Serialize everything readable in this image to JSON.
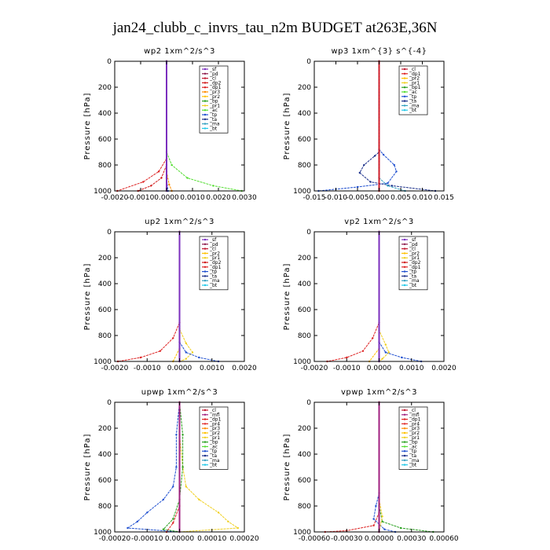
{
  "figure_title": "jan24_clubb_c_invrs_tau_n2m  BUDGET at263E,36N",
  "series_colors": {
    "_sf": "#7b2fbe",
    "_pd": "#8b1a4a",
    "_cl": "#c0182f",
    "_dp2": "#d01818",
    "_dp1": "#dd2222",
    "_pr3": "#ff8c00",
    "_pr2": "#ffc000",
    "_pr1": "#f0d020",
    "_bp": "#2aa020",
    "_bp1": "#2aa020",
    "_ac": "#55dd33",
    "_tp": "#2050d0",
    "_ta": "#1a2f8a",
    "_ma": "#33a0c0",
    "_bt": "#22c8e8",
    "_mfl": "#a02080",
    "_dp4": "#c0182f",
    "_pr4": "#e02a2a"
  },
  "chart_data": [
    {
      "type": "line",
      "title": "wp2   1xm^2/s^3",
      "ylabel": "Pressure  [hPa]",
      "ylim": [
        1000,
        0
      ],
      "xlim": [
        -0.002,
        0.003
      ],
      "xticks": [
        "-0.0020",
        "-0.0010",
        "0.0000",
        "0.0010",
        "0.0020",
        "0.0030"
      ],
      "xtick_values": [
        -0.002,
        -0.001,
        0.0,
        0.001,
        0.002,
        0.003
      ],
      "yticks": [
        "0",
        "200",
        "400",
        "600",
        "800",
        "1000"
      ],
      "ytick_values": [
        0,
        200,
        400,
        600,
        800,
        1000
      ],
      "legend": [
        "_sf",
        "_pd",
        "_cl",
        "_dp2",
        "_dp1",
        "_pr3",
        "_pr2",
        "_bp",
        "_pr1",
        "_ac",
        "_tp",
        "_ta",
        "_ma",
        "_bt"
      ],
      "series": [
        {
          "name": "_ac",
          "values": [
            [
              0.0,
              0
            ],
            [
              0.0,
              700
            ],
            [
              0.0002,
              800
            ],
            [
              0.0008,
              900
            ],
            [
              0.0018,
              960
            ],
            [
              0.0029,
              1000
            ]
          ]
        },
        {
          "name": "_dp1",
          "values": [
            [
              0.0,
              0
            ],
            [
              0.0,
              750
            ],
            [
              -0.0003,
              850
            ],
            [
              -0.0009,
              930
            ],
            [
              -0.0019,
              1000
            ]
          ]
        },
        {
          "name": "_dp2",
          "values": [
            [
              0.0,
              0
            ],
            [
              0.0,
              800
            ],
            [
              -0.0002,
              900
            ],
            [
              -0.0006,
              960
            ],
            [
              -0.0011,
              1000
            ]
          ]
        },
        {
          "name": "_pr3",
          "values": [
            [
              0.0,
              0
            ],
            [
              0.0,
              850
            ],
            [
              0.0001,
              950
            ],
            [
              0.0002,
              1000
            ]
          ]
        },
        {
          "name": "_tp",
          "values": [
            [
              0.0,
              0
            ],
            [
              0.0,
              900
            ],
            [
              5e-05,
              1000
            ]
          ]
        },
        {
          "name": "_cl",
          "values": [
            [
              0.0,
              0
            ],
            [
              0.0,
              1000
            ]
          ]
        },
        {
          "name": "_sf",
          "values": [
            [
              0.0,
              0
            ],
            [
              0.0,
              1000
            ]
          ]
        }
      ]
    },
    {
      "type": "line",
      "title": "wp3   1xm^{3} s^{-4}",
      "ylabel": "Pressure  [hPa]",
      "ylim": [
        1000,
        0
      ],
      "xlim": [
        -0.015,
        0.015
      ],
      "xticks": [
        "-0.015",
        "-0.010",
        "-0.005",
        "0.000",
        "0.005",
        "0.010",
        "0.015"
      ],
      "xtick_values": [
        -0.015,
        -0.01,
        -0.005,
        0.0,
        0.005,
        0.01,
        0.015
      ],
      "yticks": [
        "0",
        "200",
        "400",
        "600",
        "800",
        "1000"
      ],
      "ytick_values": [
        0,
        200,
        400,
        600,
        800,
        1000
      ],
      "legend": [
        "_cl",
        "_dp1",
        "_pr2",
        "_pr1",
        "_bp1",
        "_ac",
        "_tp",
        "_ta",
        "_ma",
        "_bt"
      ],
      "series": [
        {
          "name": "_tp",
          "values": [
            [
              0.0,
              0
            ],
            [
              0.0,
              680
            ],
            [
              0.001,
              720
            ],
            [
              0.0035,
              800
            ],
            [
              0.004,
              850
            ],
            [
              0.002,
              940
            ],
            [
              -0.005,
              970
            ],
            [
              -0.014,
              1000
            ]
          ]
        },
        {
          "name": "_ta",
          "values": [
            [
              0.0,
              0
            ],
            [
              0.0,
              700
            ],
            [
              -0.001,
              730
            ],
            [
              -0.0035,
              800
            ],
            [
              -0.0045,
              860
            ],
            [
              -0.002,
              930
            ],
            [
              0.003,
              960
            ],
            [
              0.013,
              1000
            ]
          ]
        },
        {
          "name": "_ma",
          "values": [
            [
              0.0,
              0
            ],
            [
              0.0,
              900
            ],
            [
              0.002,
              960
            ],
            [
              0.006,
              1000
            ]
          ]
        },
        {
          "name": "_cl",
          "values": [
            [
              0.0,
              0
            ],
            [
              0.0,
              1000
            ]
          ]
        },
        {
          "name": "_dp1",
          "values": [
            [
              0.0,
              0
            ],
            [
              0.0,
              1000
            ]
          ]
        }
      ]
    },
    {
      "type": "line",
      "title": "up2   1xm^2/s^3",
      "ylabel": "Pressure  [hPa]",
      "ylim": [
        1000,
        0
      ],
      "xlim": [
        -0.002,
        0.002
      ],
      "xticks": [
        "-0.0020",
        "-0.0010",
        "0.0000",
        "0.0010",
        "0.0020"
      ],
      "xtick_values": [
        -0.002,
        -0.001,
        0.0,
        0.001,
        0.002
      ],
      "yticks": [
        "0",
        "200",
        "400",
        "600",
        "800",
        "1000"
      ],
      "ytick_values": [
        0,
        200,
        400,
        600,
        800,
        1000
      ],
      "legend": [
        "_sf",
        "_pd",
        "_cl",
        "_pr2",
        "_pr1",
        "_dp2",
        "_dp1",
        "_tp",
        "_ta",
        "_ma",
        "_bt"
      ],
      "series": [
        {
          "name": "_dp1",
          "values": [
            [
              0.0,
              0
            ],
            [
              0.0,
              700
            ],
            [
              -0.0002,
              820
            ],
            [
              -0.0006,
              920
            ],
            [
              -0.0012,
              970
            ],
            [
              -0.0019,
              1000
            ]
          ]
        },
        {
          "name": "_pr1",
          "values": [
            [
              0.0,
              0
            ],
            [
              0.0,
              750
            ],
            [
              0.0002,
              860
            ],
            [
              0.0004,
              930
            ],
            [
              0.0002,
              980
            ],
            [
              0.0,
              1000
            ]
          ]
        },
        {
          "name": "_tp",
          "values": [
            [
              0.0,
              0
            ],
            [
              0.0,
              850
            ],
            [
              0.0002,
              930
            ],
            [
              0.0006,
              970
            ],
            [
              0.0012,
              1000
            ]
          ]
        },
        {
          "name": "_pr2",
          "values": [
            [
              0.0,
              0
            ],
            [
              0.0,
              900
            ],
            [
              -0.0002,
              1000
            ]
          ]
        },
        {
          "name": "_cl",
          "values": [
            [
              0.0,
              0
            ],
            [
              0.0,
              1000
            ]
          ]
        },
        {
          "name": "_sf",
          "values": [
            [
              0.0,
              0
            ],
            [
              0.0,
              1000
            ]
          ]
        }
      ]
    },
    {
      "type": "line",
      "title": "vp2   1xm^2/s^3",
      "ylabel": "Pressure  [hPa]",
      "ylim": [
        1000,
        0
      ],
      "xlim": [
        -0.002,
        0.002
      ],
      "xticks": [
        "-0.0020",
        "-0.0010",
        "0.0000",
        "0.0010",
        "0.0020"
      ],
      "xtick_values": [
        -0.002,
        -0.001,
        0.0,
        0.001,
        0.002
      ],
      "yticks": [
        "0",
        "200",
        "400",
        "600",
        "800",
        "1000"
      ],
      "ytick_values": [
        0,
        200,
        400,
        600,
        800,
        1000
      ],
      "legend": [
        "_sf",
        "_pd",
        "_cl",
        "_pr2",
        "_pr1",
        "_dp2",
        "_dp1",
        "_tp",
        "_ta",
        "_ma",
        "_bt"
      ],
      "series": [
        {
          "name": "_dp1",
          "values": [
            [
              0.0,
              0
            ],
            [
              0.0,
              700
            ],
            [
              -0.0002,
              820
            ],
            [
              -0.0005,
              920
            ],
            [
              -0.001,
              970
            ],
            [
              -0.0016,
              1000
            ]
          ]
        },
        {
          "name": "_pr1",
          "values": [
            [
              0.0,
              0
            ],
            [
              0.0,
              760
            ],
            [
              0.0002,
              870
            ],
            [
              0.0003,
              930
            ],
            [
              0.0001,
              980
            ],
            [
              0.0,
              1000
            ]
          ]
        },
        {
          "name": "_tp",
          "values": [
            [
              0.0,
              0
            ],
            [
              0.0,
              850
            ],
            [
              0.0002,
              930
            ],
            [
              0.0007,
              970
            ],
            [
              0.0013,
              1000
            ]
          ]
        },
        {
          "name": "_pr2",
          "values": [
            [
              0.0,
              0
            ],
            [
              0.0,
              900
            ],
            [
              -0.0003,
              1000
            ]
          ]
        },
        {
          "name": "_cl",
          "values": [
            [
              0.0,
              0
            ],
            [
              0.0,
              1000
            ]
          ]
        },
        {
          "name": "_sf",
          "values": [
            [
              0.0,
              0
            ],
            [
              0.0,
              1000
            ]
          ]
        }
      ]
    },
    {
      "type": "line",
      "title": "upwp   1xm^2/s^3",
      "ylabel": "Pressure  [hPa]",
      "ylim": [
        1000,
        0
      ],
      "xlim": [
        -0.0002,
        0.0002
      ],
      "xticks": [
        "-0.00020",
        "-0.00010",
        "0.00000",
        "0.00010",
        "0.00020"
      ],
      "xtick_values": [
        -0.0002,
        -0.0001,
        0.0,
        0.0001,
        0.0002
      ],
      "yticks": [
        "0",
        "200",
        "400",
        "600",
        "800",
        "1000"
      ],
      "ytick_values": [
        0,
        200,
        400,
        600,
        800,
        1000
      ],
      "legend": [
        "_cl",
        "_mfl",
        "_dp1",
        "_pr4",
        "_pr3",
        "_pr2",
        "_pr1",
        "_bp",
        "_ac",
        "_tp",
        "_ta",
        "_ma",
        "_bt"
      ],
      "series": [
        {
          "name": "_pr1",
          "values": [
            [
              0.0,
              0
            ],
            [
              0.0,
              250
            ],
            [
              1e-05,
              500
            ],
            [
              2e-05,
              650
            ],
            [
              6e-05,
              750
            ],
            [
              0.00012,
              850
            ],
            [
              0.00015,
              920
            ],
            [
              0.00018,
              970
            ],
            [
              0.0,
              1000
            ]
          ]
        },
        {
          "name": "_tp",
          "values": [
            [
              0.0,
              0
            ],
            [
              -1e-05,
              250
            ],
            [
              -1e-05,
              500
            ],
            [
              -2e-05,
              650
            ],
            [
              -5e-05,
              750
            ],
            [
              -0.0001,
              850
            ],
            [
              -0.00013,
              920
            ],
            [
              -0.00016,
              970
            ],
            [
              0.0,
              1000
            ]
          ]
        },
        {
          "name": "_bp",
          "values": [
            [
              0.0,
              0
            ],
            [
              1e-05,
              250
            ],
            [
              1e-05,
              500
            ],
            [
              0.0,
              750
            ],
            [
              -2e-05,
              900
            ],
            [
              -5e-05,
              980
            ],
            [
              0.0,
              1000
            ]
          ]
        },
        {
          "name": "_dp1",
          "values": [
            [
              0.0,
              0
            ],
            [
              0.0,
              800
            ],
            [
              -2e-05,
              930
            ],
            [
              -4e-05,
              1000
            ]
          ]
        },
        {
          "name": "_cl",
          "values": [
            [
              0.0,
              0
            ],
            [
              0.0,
              1000
            ]
          ]
        },
        {
          "name": "_mfl",
          "values": [
            [
              0.0,
              0
            ],
            [
              0.0,
              1000
            ]
          ]
        }
      ]
    },
    {
      "type": "line",
      "title": "vpwp   1xm^2/s^3",
      "ylabel": "Pressure  [hPa]",
      "ylim": [
        1000,
        0
      ],
      "xlim": [
        -0.0006,
        0.0006
      ],
      "xticks": [
        "-0.00060",
        "-0.00030",
        "0.00000",
        "0.00030",
        "0.00060"
      ],
      "xtick_values": [
        -0.0006,
        -0.0003,
        0.0,
        0.0003,
        0.0006
      ],
      "yticks": [
        "0",
        "200",
        "400",
        "600",
        "800",
        "1000"
      ],
      "ytick_values": [
        0,
        200,
        400,
        600,
        800,
        1000
      ],
      "legend": [
        "_cl",
        "_mfl",
        "_dp1",
        "_pr4",
        "_pr3",
        "_pr2",
        "_pr1",
        "_bp",
        "_ac",
        "_tp",
        "_ta",
        "_ma",
        "_bt"
      ],
      "series": [
        {
          "name": "_bp",
          "values": [
            [
              0.0,
              0
            ],
            [
              0.0,
              800
            ],
            [
              3e-05,
              920
            ],
            [
              0.0002,
              970
            ],
            [
              0.0005,
              1000
            ]
          ]
        },
        {
          "name": "_dp1",
          "values": [
            [
              0.0,
              0
            ],
            [
              0.0,
              850
            ],
            [
              -5e-05,
              950
            ],
            [
              -0.0003,
              990
            ],
            [
              -0.0005,
              1000
            ]
          ]
        },
        {
          "name": "_tp",
          "values": [
            [
              0.0,
              0
            ],
            [
              0.0,
              700
            ],
            [
              -3e-05,
              800
            ],
            [
              -5e-05,
              900
            ],
            [
              5e-05,
              980
            ],
            [
              0.00015,
              1000
            ]
          ]
        },
        {
          "name": "_pr1",
          "values": [
            [
              0.0,
              0
            ],
            [
              0.0,
              750
            ],
            [
              3e-05,
              880
            ],
            [
              0.0,
              1000
            ]
          ]
        },
        {
          "name": "_cl",
          "values": [
            [
              0.0,
              0
            ],
            [
              0.0,
              1000
            ]
          ]
        },
        {
          "name": "_mfl",
          "values": [
            [
              0.0,
              0
            ],
            [
              0.0,
              1000
            ]
          ]
        }
      ]
    }
  ]
}
